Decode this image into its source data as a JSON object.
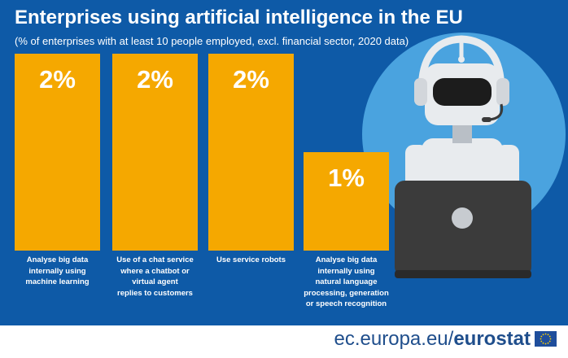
{
  "header": {
    "title": "Enterprises using artificial intelligence in the EU",
    "subtitle": "(% of enterprises with at least 10 people employed, excl. financial sector, 2020 data)"
  },
  "footer": {
    "url_plain": "ec.europa.eu",
    "separator": "/",
    "url_brand": "eurostat",
    "flag_icon": "eu-flag-icon"
  },
  "colors": {
    "background": "#0e5aa7",
    "bar": "#f5a800",
    "illustration_circle": "#4aa3df"
  },
  "chart_data": {
    "type": "bar",
    "title": "Enterprises using artificial intelligence in the EU",
    "subtitle": "(% of enterprises with at least 10 people employed, excl. financial sector, 2020 data)",
    "unit": "%",
    "categories": [
      "Analyse big data internally using machine learning",
      "Use of a chat service where  a chatbot or virtual agent replies to customers",
      "Use service robots",
      "Analyse big data internally using natural language processing, generation or speech recognition"
    ],
    "values": [
      2,
      2,
      2,
      1
    ],
    "value_labels": [
      "2%",
      "2%",
      "2%",
      "1%"
    ],
    "label_lines": [
      [
        "Analyse big data",
        "internally using",
        "machine learning"
      ],
      [
        "Use of a chat service",
        "where  a chatbot or",
        "virtual agent",
        "replies to customers"
      ],
      [
        "Use service robots"
      ],
      [
        "Analyse big data",
        "internally using",
        "natural language",
        "processing, generation",
        "or speech recognition"
      ]
    ],
    "ylim": [
      0,
      2
    ],
    "xlabel": "",
    "ylabel": "",
    "grid": false,
    "legend": "none"
  }
}
